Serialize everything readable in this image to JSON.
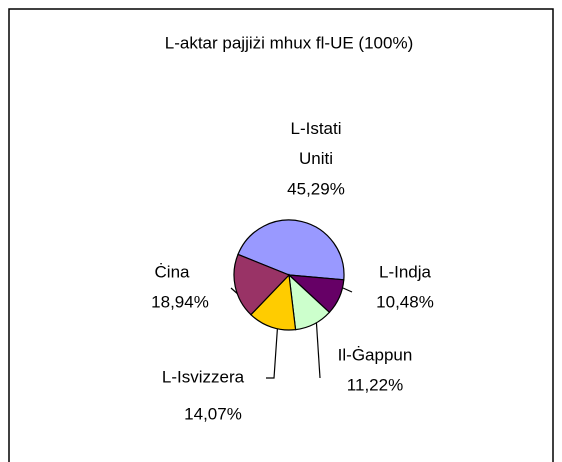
{
  "chart_data": {
    "type": "pie",
    "title": "L-aktar pajjiżi mhux fl-UE (100%)",
    "categories": [
      "L-Istati Uniti",
      "L-Indja",
      "Il-Ġappun",
      "L-Isvizzera",
      "Ċina"
    ],
    "values": [
      45.29,
      10.48,
      11.22,
      14.07,
      18.94
    ],
    "value_labels": [
      "45,29%",
      "10,48%",
      "11,22%",
      "14,07%",
      "18,94%"
    ],
    "colors": [
      "#9999ff",
      "#660066",
      "#ccffcc",
      "#ffcc00",
      "#993366"
    ]
  }
}
